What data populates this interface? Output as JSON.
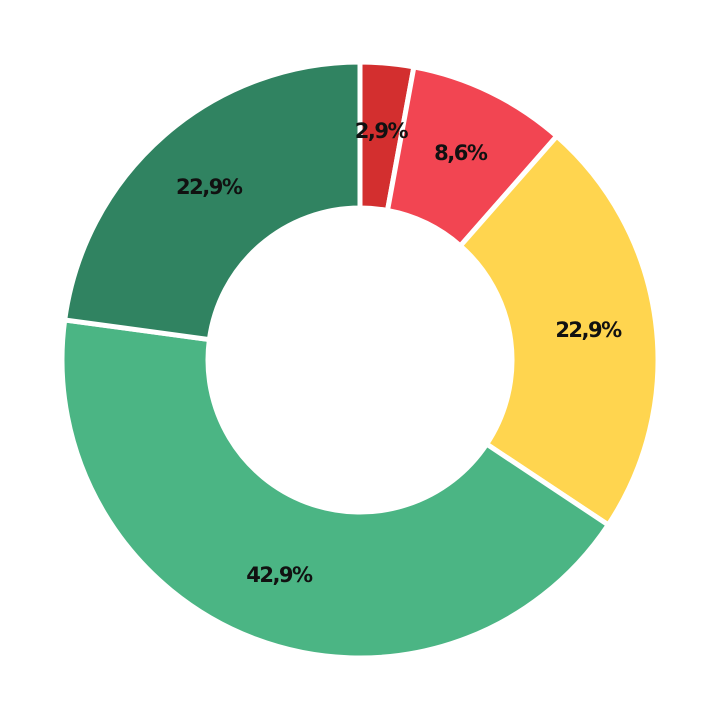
{
  "chart_data": {
    "type": "pie",
    "variant": "donut",
    "start": "top",
    "direction": "clockwise",
    "slices": [
      {
        "value": 2.9,
        "label": "2,9%",
        "color": "#d32f2f"
      },
      {
        "value": 8.6,
        "label": "8,6%",
        "color": "#f24552"
      },
      {
        "value": 22.9,
        "label": "22,9%",
        "color": "#ffd54f"
      },
      {
        "value": 42.9,
        "label": "42,9%",
        "color": "#4bb584"
      },
      {
        "value": 22.9,
        "label": "22,9%",
        "color": "#308361"
      }
    ]
  }
}
